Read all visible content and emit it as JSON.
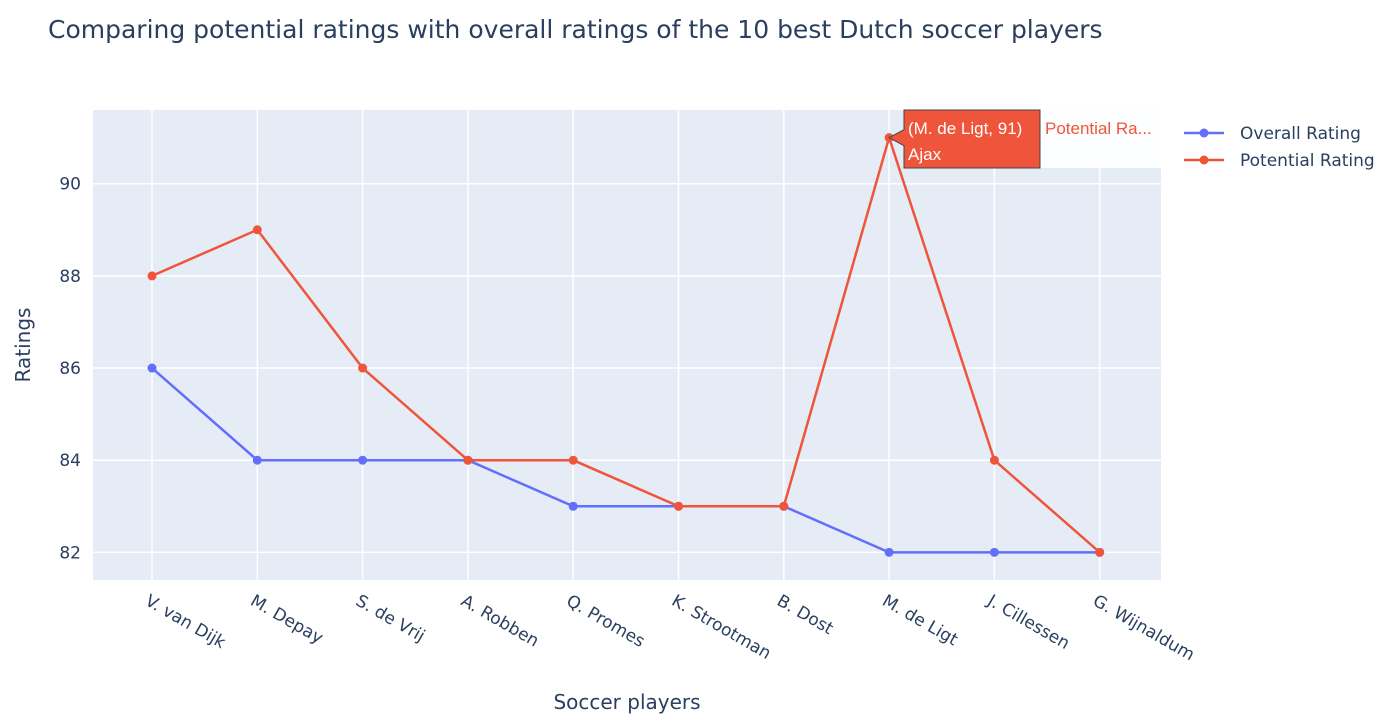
{
  "chart_data": {
    "type": "line",
    "title": "Comparing potential ratings with overall ratings of the 10 best Dutch soccer players",
    "xlabel": "Soccer players",
    "ylabel": "Ratings",
    "categories": [
      "V. van Dijk",
      "M. Depay",
      "S. de Vrij",
      "A. Robben",
      "Q. Promes",
      "K. Strootman",
      "B. Dost",
      "M. de Ligt",
      "J. Cillessen",
      "G. Wijnaldum"
    ],
    "ylim": [
      81.4,
      91.6
    ],
    "yticks": [
      82,
      84,
      86,
      88,
      90
    ],
    "grid": true,
    "legend_position": "top-right",
    "series": [
      {
        "name": "Overall Rating",
        "color": "#636efa",
        "values": [
          86,
          84,
          84,
          84,
          83,
          83,
          83,
          82,
          82,
          82
        ]
      },
      {
        "name": "Potential Rating",
        "color": "#ef553b",
        "values": [
          88,
          89,
          86,
          84,
          84,
          83,
          83,
          91,
          84,
          82
        ]
      }
    ],
    "hover": {
      "series": "Potential Rating",
      "category": "M. de Ligt",
      "value": 91,
      "line1": "(M. de Ligt, 91)",
      "line2": "Ajax",
      "name": "Potential Ra..."
    }
  }
}
